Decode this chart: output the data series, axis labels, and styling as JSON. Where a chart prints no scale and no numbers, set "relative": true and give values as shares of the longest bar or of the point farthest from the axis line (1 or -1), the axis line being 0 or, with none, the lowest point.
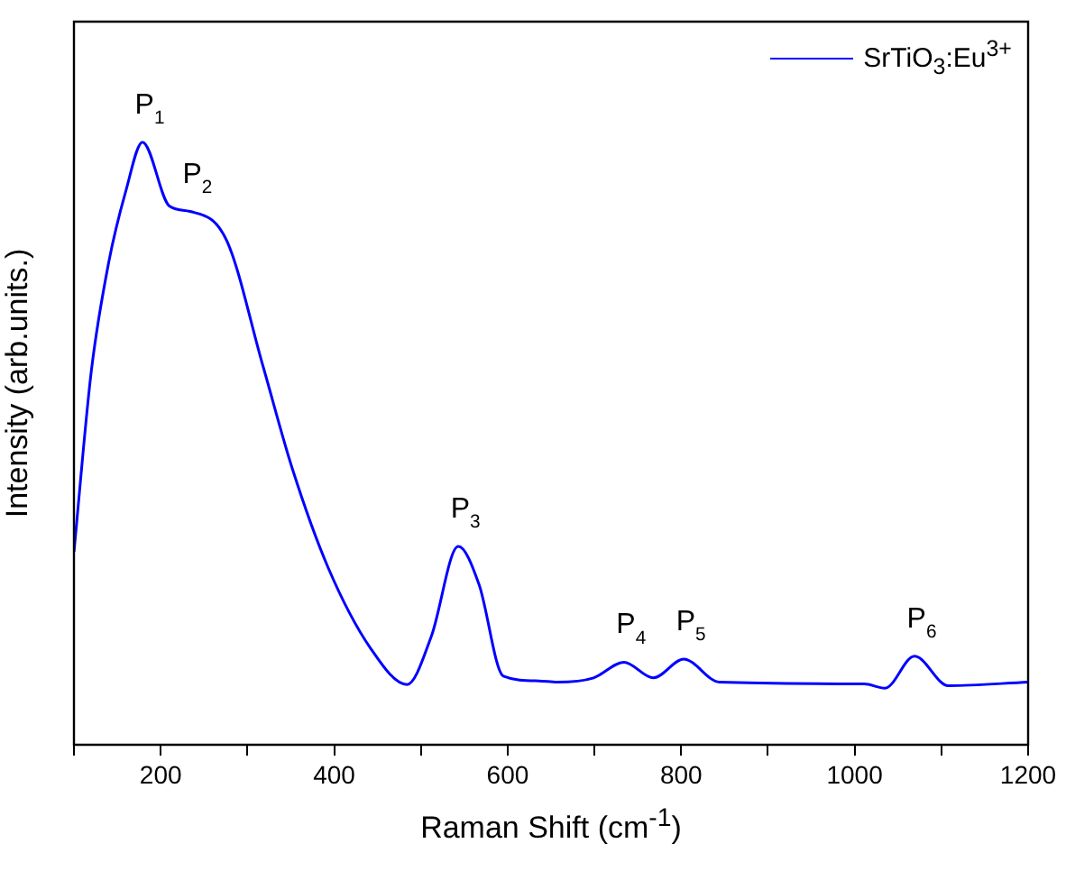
{
  "chart_data": {
    "type": "line",
    "relative": true,
    "xlabel": "Raman Shift (cm$^{-1}$)",
    "ylabel": "Intensity (arb.units.)",
    "xlim": [
      100,
      1200
    ],
    "xticks": [
      {
        "value": 100,
        "label": null
      },
      200,
      {
        "value": 300,
        "label": null
      },
      400,
      {
        "value": 500,
        "label": null
      },
      600,
      {
        "value": 700,
        "label": null
      },
      800,
      {
        "value": 900,
        "label": null
      },
      1000,
      {
        "value": 1100,
        "label": null
      },
      1200
    ],
    "legend": "top right",
    "grid": false,
    "marker": "none",
    "line_style": "solid",
    "series": [
      {
        "name": "SrTiO$_{3}$:Eu$^{3+}$",
        "color": "#0000ff",
        "x": [
          100,
          120,
          140,
          160,
          179,
          210,
          234,
          276,
          318,
          352,
          393,
          442,
          484,
          512,
          543,
          567,
          595,
          636,
          657,
          699,
          734,
          768,
          803,
          844,
          1011,
          1035,
          1069,
          1108,
          1200
        ],
        "values": [
          0.32,
          0.62,
          0.8,
          0.92,
          1.0,
          0.894,
          0.885,
          0.837,
          0.628,
          0.457,
          0.294,
          0.16,
          0.1,
          0.18,
          0.329,
          0.266,
          0.114,
          0.106,
          0.104,
          0.111,
          0.137,
          0.111,
          0.142,
          0.104,
          0.101,
          0.094,
          0.147,
          0.098,
          0.104
        ]
      }
    ],
    "annotations": [
      {
        "text": "P$_{1}$",
        "x": 179,
        "y": 1.0
      },
      {
        "text": "P$_{2}$",
        "x": 234,
        "y": 0.885
      },
      {
        "text": "P$_{3}$",
        "x": 543,
        "y": 0.329
      },
      {
        "text": "P$_{4}$",
        "x": 734,
        "y": 0.137
      },
      {
        "text": "P$_{5}$",
        "x": 803,
        "y": 0.142
      },
      {
        "text": "P$_{6}$",
        "x": 1069,
        "y": 0.147
      }
    ]
  }
}
